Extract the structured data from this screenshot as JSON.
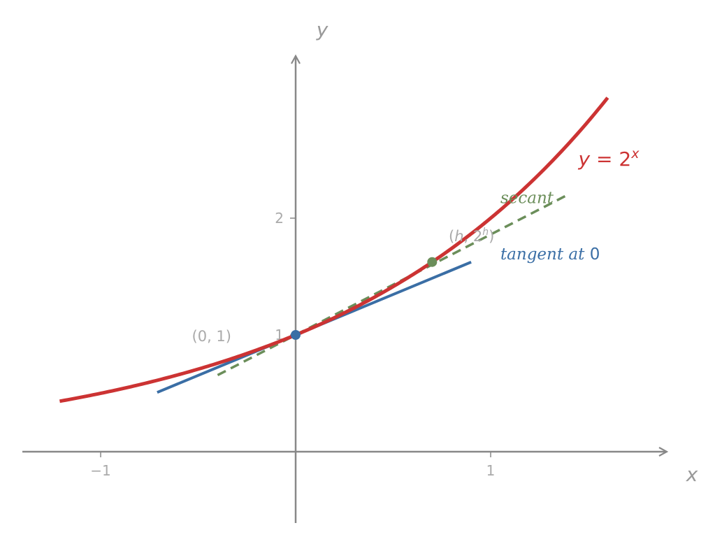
{
  "chart_data": {
    "type": "line",
    "title": "",
    "xlabel": "x",
    "ylabel": "y",
    "xlim": [
      -1.4,
      1.9
    ],
    "ylim": [
      -0.4,
      3.4
    ],
    "x_ticks": [
      {
        "value": -1,
        "label": "−1"
      },
      {
        "value": 1,
        "label": "1"
      }
    ],
    "y_ticks": [
      {
        "value": 1,
        "label": "1"
      },
      {
        "value": 2,
        "label": "2"
      }
    ],
    "grid": false,
    "series": [
      {
        "name": "y = 2^x",
        "kind": "curve",
        "function": "2^x",
        "x_range": [
          -1.21,
          1.6
        ],
        "color": "#cc3333",
        "dash": false
      },
      {
        "name": "tangent at 0",
        "kind": "line",
        "x_range": [
          -0.71,
          0.9
        ],
        "slope": 0.6931,
        "intercept": 1,
        "color": "#3a6ea5",
        "dash": false
      },
      {
        "name": "secant",
        "kind": "line",
        "x_range": [
          -0.4,
          1.39
        ],
        "slope": 0.8602,
        "intercept": 1,
        "color": "#6b8e5a",
        "dash": true
      }
    ],
    "points": [
      {
        "x": 0,
        "y": 1,
        "color": "#3a6ea5",
        "label": "(0, 1)"
      },
      {
        "x": 0.7,
        "y": 1.6245,
        "color": "#6b8e5a",
        "label": "(h, 2ʰ)"
      }
    ],
    "annotations": {
      "curve_label": {
        "prefix": "y",
        "eq": " = 2",
        "sup": "x",
        "x": 1.45,
        "y": 2.45
      },
      "secant_label": {
        "text": "secant",
        "x": 1.05,
        "y": 2.13
      },
      "point2_label": {
        "text_h": "h",
        "text_mid": ", 2",
        "text_sup": "h",
        "x": 0.78,
        "y": 1.85
      },
      "tangent_label": {
        "text": "tangent at ",
        "suffix": "0",
        "x": 1.05,
        "y": 1.7
      }
    }
  }
}
